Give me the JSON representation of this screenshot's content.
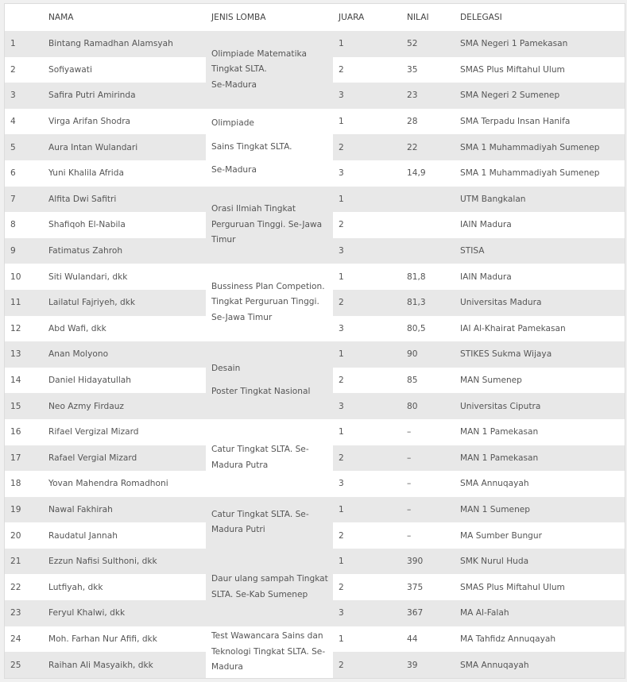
{
  "headers": {
    "no": "",
    "nama": "NAMA",
    "jenis": "JENIS LOMBA",
    "juara": "JUARA",
    "nilai": "NILAI",
    "delegasi": "DELEGASI"
  },
  "groups": [
    {
      "lines": [
        "Olimpiade Matematika Tingkat SLTA.",
        "Se-Madura"
      ],
      "spaced": false,
      "rows": [
        {
          "no": "1",
          "nama": "Bintang Ramadhan Alamsyah",
          "juara": "1",
          "nilai": "52",
          "delegasi": "SMA Negeri 1 Pamekasan"
        },
        {
          "no": "2",
          "nama": "Sofiyawati",
          "juara": "2",
          "nilai": "35",
          "delegasi": "SMAS Plus Miftahul Ulum"
        },
        {
          "no": "3",
          "nama": "Safira Putri Amirinda",
          "juara": "3",
          "nilai": "23",
          "delegasi": "SMA Negeri 2 Sumenep"
        }
      ]
    },
    {
      "lines": [
        "Olimpiade",
        "Sains Tingkat SLTA.",
        "Se-Madura"
      ],
      "spaced": true,
      "rows": [
        {
          "no": "4",
          "nama": "Virga Arifan Shodra",
          "juara": "1",
          "nilai": "28",
          "delegasi": "SMA Terpadu Insan Hanifa"
        },
        {
          "no": "5",
          "nama": "Aura Intan Wulandari",
          "juara": "2",
          "nilai": "22",
          "delegasi": "SMA 1 Muhammadiyah Sumenep"
        },
        {
          "no": "6",
          "nama": "Yuni Khalila Afrida",
          "juara": "3",
          "nilai": "14,9",
          "delegasi": "SMA 1 Muhammadiyah Sumenep"
        }
      ]
    },
    {
      "lines": [
        "Orasi Ilmiah Tingkat Perguruan Tinggi. Se-Jawa Timur"
      ],
      "spaced": false,
      "rows": [
        {
          "no": "7",
          "nama": "Alfita Dwi Safitri",
          "juara": "1",
          "nilai": "",
          "delegasi": "UTM Bangkalan"
        },
        {
          "no": "8",
          "nama": "Shafiqoh El-Nabila",
          "juara": "2",
          "nilai": "",
          "delegasi": "IAIN Madura"
        },
        {
          "no": "9",
          "nama": "Fatimatus Zahroh",
          "juara": "3",
          "nilai": "",
          "delegasi": "STISA"
        }
      ]
    },
    {
      "lines": [
        "Bussiness Plan Competion. Tingkat Perguruan Tinggi. Se-Jawa Timur"
      ],
      "spaced": false,
      "rows": [
        {
          "no": "10",
          "nama": "Siti Wulandari, dkk",
          "juara": "1",
          "nilai": "81,8",
          "delegasi": "IAIN Madura"
        },
        {
          "no": "11",
          "nama": "Lailatul Fajriyeh, dkk",
          "juara": "2",
          "nilai": "81,3",
          "delegasi": "Universitas Madura"
        },
        {
          "no": "12",
          "nama": "Abd Wafi, dkk",
          "juara": "3",
          "nilai": "80,5",
          "delegasi": "IAI Al-Khairat Pamekasan"
        }
      ]
    },
    {
      "lines": [
        "Desain",
        "Poster Tingkat Nasional"
      ],
      "spaced": true,
      "rows": [
        {
          "no": "13",
          "nama": "Anan Molyono",
          "juara": "1",
          "nilai": "90",
          "delegasi": "STIKES Sukma Wijaya"
        },
        {
          "no": "14",
          "nama": "Daniel Hidayatullah",
          "juara": "2",
          "nilai": "85",
          "delegasi": "MAN Sumenep"
        },
        {
          "no": "15",
          "nama": "Neo Azmy Firdauz",
          "juara": "3",
          "nilai": "80",
          "delegasi": "Universitas Ciputra"
        }
      ]
    },
    {
      "lines": [
        "Catur Tingkat SLTA. Se-Madura Putra"
      ],
      "spaced": false,
      "rows": [
        {
          "no": "16",
          "nama": "Rifael Vergizal Mizard",
          "juara": "1",
          "nilai": "–",
          "delegasi": "MAN 1 Pamekasan"
        },
        {
          "no": "17",
          "nama": "Rafael Vergial Mizard",
          "juara": "2",
          "nilai": "–",
          "delegasi": "MAN 1 Pamekasan"
        },
        {
          "no": "18",
          "nama": "Yovan Mahendra Romadhoni",
          "juara": "3",
          "nilai": "–",
          "delegasi": "SMA Annuqayah"
        }
      ]
    },
    {
      "lines": [
        "Catur Tingkat SLTA. Se-Madura Putri"
      ],
      "spaced": false,
      "rows": [
        {
          "no": "19",
          "nama": "Nawal Fakhirah",
          "juara": "1",
          "nilai": "–",
          "delegasi": "MAN 1 Sumenep"
        },
        {
          "no": "20",
          "nama": "Raudatul Jannah",
          "juara": "2",
          "nilai": "–",
          "delegasi": "MA Sumber Bungur"
        }
      ]
    },
    {
      "lines": [
        "Daur ulang sampah Tingkat SLTA. Se-Kab Sumenep"
      ],
      "spaced": false,
      "rows": [
        {
          "no": "21",
          "nama": "Ezzun Nafisi Sulthoni, dkk",
          "juara": "1",
          "nilai": "390",
          "delegasi": "SMK Nurul Huda"
        },
        {
          "no": "22",
          "nama": "Lutfiyah, dkk",
          "juara": "2",
          "nilai": "375",
          "delegasi": "SMAS Plus Miftahul Ulum"
        },
        {
          "no": "23",
          "nama": "Feryul Khalwi, dkk",
          "juara": "3",
          "nilai": "367",
          "delegasi": "MA Al-Falah"
        }
      ]
    },
    {
      "lines": [
        "Test Wawancara Sains dan Teknologi Tingkat SLTA. Se-Madura"
      ],
      "spaced": false,
      "rows": [
        {
          "no": "24",
          "nama": "Moh. Farhan Nur Afifi, dkk",
          "juara": "1",
          "nilai": "44",
          "delegasi": "MA Tahfidz Annuqayah"
        },
        {
          "no": "25",
          "nama": "Raihan Ali Masyaikh, dkk",
          "juara": "2",
          "nilai": "39",
          "delegasi": "SMA Annuqayah"
        }
      ]
    }
  ]
}
